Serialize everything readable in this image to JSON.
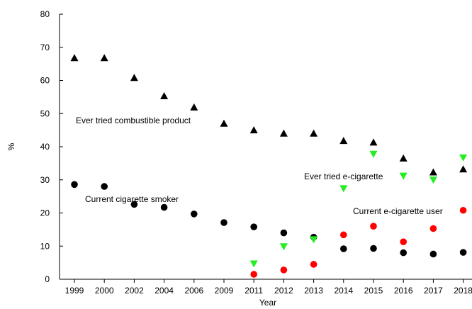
{
  "chart_data": {
    "type": "scatter",
    "title": "",
    "xlabel": "Year",
    "ylabel": "%",
    "ylim": [
      0,
      80
    ],
    "yticks": [
      "0",
      "10",
      "20",
      "30",
      "40",
      "50",
      "60",
      "70",
      "80"
    ],
    "categories": [
      "1999",
      "2000",
      "2002",
      "2004",
      "2006",
      "2009",
      "2011",
      "2012",
      "2013",
      "2014",
      "2015",
      "2016",
      "2017",
      "2018"
    ],
    "grid": false,
    "legend": "none",
    "series": [
      {
        "name": "Ever tried combustible product",
        "marker": "triangle-up",
        "color": "#000000",
        "values": [
          66.8,
          66.8,
          60.8,
          55.3,
          51.9,
          47.0,
          45.0,
          44.0,
          44.0,
          41.8,
          41.3,
          36.5,
          32.3,
          33.2
        ]
      },
      {
        "name": "Current cigarette smoker",
        "marker": "circle",
        "color": "#000000",
        "values": [
          28.6,
          28.0,
          22.6,
          21.7,
          19.7,
          17.1,
          15.8,
          14.0,
          12.7,
          9.2,
          9.3,
          8.0,
          7.6,
          8.1
        ]
      },
      {
        "name": "Ever tried e-cigarette",
        "marker": "triangle-down",
        "color": "#22ee22",
        "values": [
          null,
          null,
          null,
          null,
          null,
          null,
          4.7,
          9.9,
          12.0,
          27.4,
          37.8,
          31.2,
          30.0,
          36.7
        ]
      },
      {
        "name": "Current e-cigarette user",
        "marker": "circle",
        "color": "#ff0000",
        "values": [
          null,
          null,
          null,
          null,
          null,
          null,
          1.5,
          2.8,
          4.5,
          13.4,
          16.0,
          11.3,
          15.3,
          20.8
        ]
      }
    ]
  }
}
